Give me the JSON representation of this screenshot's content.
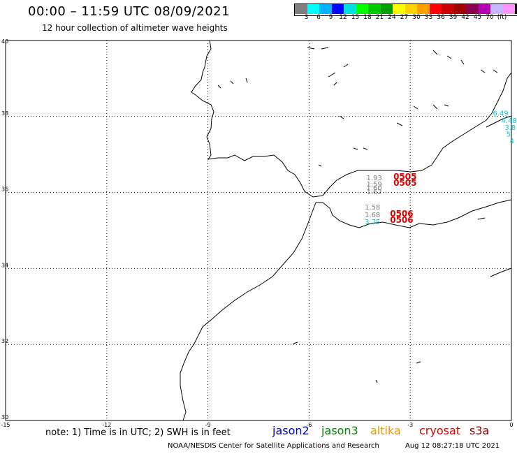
{
  "title": "00:00 – 11:59 UTC 08/09/2021",
  "subtitle": "12 hour collection of altimeter wave heights",
  "legend": {
    "colors": [
      "#7f7f7f",
      "#00ffff",
      "#00b4ff",
      "#0000ff",
      "#00e1e1",
      "#00ff00",
      "#00c800",
      "#00a000",
      "#ffff00",
      "#ffd200",
      "#ffa000",
      "#ff0000",
      "#c80000",
      "#a00000",
      "#8c0050",
      "#b400b4",
      "#c8b4ff",
      "#ff96ff",
      "#000000"
    ],
    "labels": [
      "3",
      "6",
      "9",
      "12",
      "15",
      "18",
      "21",
      "24",
      "27",
      "30",
      "33",
      "36",
      "39",
      "42",
      "45",
      "70",
      "(ft)"
    ]
  },
  "axes": {
    "lat_ticks": [
      "40",
      "38",
      "36",
      "34",
      "32",
      "30"
    ],
    "lon_ticks": [
      "-15",
      "-12",
      "-9",
      "-6",
      "-3",
      "0"
    ]
  },
  "wave_labels": [
    {
      "text": "6.49",
      "color": "#00cccc",
      "lon": -0.55,
      "lat": 38.02
    },
    {
      "text": "4.48",
      "color": "#00cccc",
      "lon": -0.3,
      "lat": 37.83
    },
    {
      "text": "3.8",
      "color": "#00cccc",
      "lon": -0.2,
      "lat": 37.65
    },
    {
      "text": "5.",
      "color": "#00cccc",
      "lon": -0.15,
      "lat": 37.47
    },
    {
      "text": "4",
      "color": "#00cccc",
      "lon": -0.05,
      "lat": 37.29
    },
    {
      "text": "1.93",
      "color": "#808080",
      "lon": -4.3,
      "lat": 36.32
    },
    {
      "text": "1.59",
      "color": "#808080",
      "lon": -4.3,
      "lat": 36.16
    },
    {
      "text": "1.60",
      "color": "#808080",
      "lon": -4.3,
      "lat": 36.06
    },
    {
      "text": "1.62",
      "color": "#808080",
      "lon": -4.3,
      "lat": 35.96
    },
    {
      "text": "0505",
      "color": "#dd0000",
      "lon": -3.5,
      "lat": 36.34
    },
    {
      "text": "0505",
      "color": "#dd0000",
      "lon": -3.5,
      "lat": 36.18
    },
    {
      "text": "1.58",
      "color": "#808080",
      "lon": -4.35,
      "lat": 35.55
    },
    {
      "text": "1.68",
      "color": "#808080",
      "lon": -4.35,
      "lat": 35.35
    },
    {
      "text": "3.75",
      "color": "#00cccc",
      "lon": -4.35,
      "lat": 35.17
    },
    {
      "text": "0506",
      "color": "#dd0000",
      "lon": -3.6,
      "lat": 35.37
    },
    {
      "text": "0506",
      "color": "#dd0000",
      "lon": -3.6,
      "lat": 35.2
    }
  ],
  "note": "note: 1) Time is in UTC; 2) SWH is in feet",
  "satellites": [
    {
      "name": "jason2",
      "color": "#0000cc"
    },
    {
      "name": "jason3",
      "color": "#008800"
    },
    {
      "name": "altika",
      "color": "#ee9900"
    },
    {
      "name": "cryosat",
      "color": "#dd0000"
    },
    {
      "name": "s3a",
      "color": "#880000"
    }
  ],
  "credit": "NOAA/NESDIS Center for Satellite Applications and Research",
  "generated": "Aug 12 08:27:18 UTC 2021"
}
